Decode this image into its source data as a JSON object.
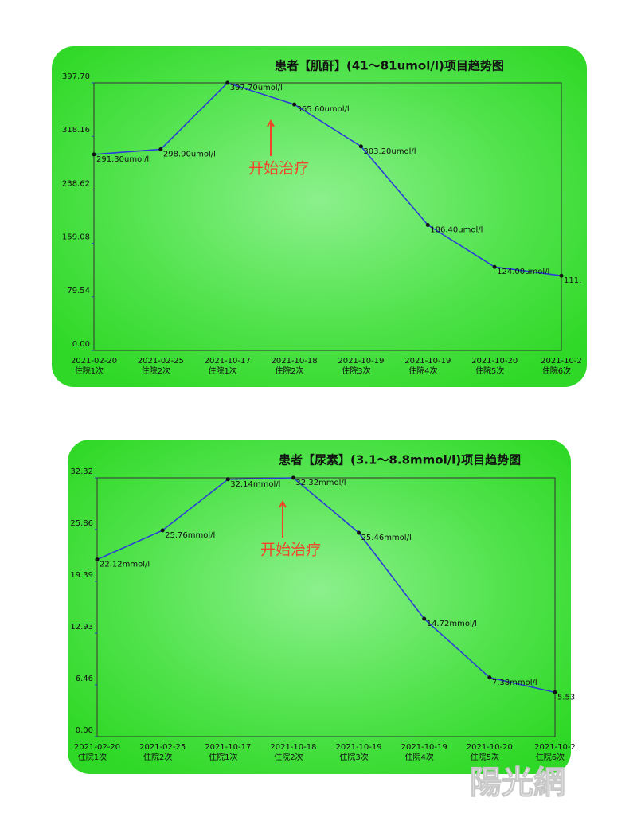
{
  "chart_data": [
    {
      "type": "line",
      "title": "患者【肌酐】(41～81umol/l)项目趋势图",
      "annotation": "开始治疗",
      "categories": [
        "2021-02-20",
        "2021-02-25",
        "2021-10-17",
        "2021-10-18",
        "2021-10-19",
        "2021-10-19",
        "2021-10-20",
        "2021-10-2"
      ],
      "visits": [
        "住院1次",
        "住院2次",
        "住院1次",
        "住院2次",
        "住院3次",
        "住院4次",
        "住院5次",
        "住院6次"
      ],
      "series": [
        {
          "color": "#2b3fd6",
          "values": [
            291.3,
            298.9,
            397.7,
            365.6,
            303.2,
            186.4,
            124.0,
            111
          ],
          "value_labels": [
            "291.30umol/l",
            "298.90umol/l",
            "397.70umol/l",
            "365.60umol/l",
            "303.20umol/l",
            "186.40umol/l",
            "124.00umol/l",
            "111."
          ]
        }
      ],
      "ylim": [
        0,
        397.7
      ],
      "yticks": [
        {
          "value": 0,
          "label": "0.00"
        },
        {
          "value": 79.54,
          "label": "79.54"
        },
        {
          "value": 159.08,
          "label": "159.08"
        },
        {
          "value": 238.62,
          "label": "238.62"
        },
        {
          "value": 318.16,
          "label": "318.16"
        },
        {
          "value": 397.7,
          "label": "397.70"
        }
      ]
    },
    {
      "type": "line",
      "title": "患者【尿素】(3.1～8.8mmol/l)项目趋势图",
      "annotation": "开始治疗",
      "categories": [
        "2021-02-20",
        "2021-02-25",
        "2021-10-17",
        "2021-10-18",
        "2021-10-19",
        "2021-10-19",
        "2021-10-20",
        "2021-10-2"
      ],
      "visits": [
        "住院1次",
        "住院2次",
        "住院1次",
        "住院2次",
        "住院3次",
        "住院4次",
        "住院5次",
        "住院6次"
      ],
      "series": [
        {
          "color": "#2b3fd6",
          "values": [
            22.12,
            25.76,
            32.14,
            32.32,
            25.46,
            14.72,
            7.38,
            5.53
          ],
          "value_labels": [
            "22.12mmol/l",
            "25.76mmol/l",
            "32.14mmol/l",
            "32.32mmol/l",
            "25.46mmol/l",
            "14.72mmol/l",
            "7.38mmol/l",
            "5.53"
          ]
        }
      ],
      "ylim": [
        0,
        32.32
      ],
      "yticks": [
        {
          "value": 0,
          "label": "0.00"
        },
        {
          "value": 6.46,
          "label": "6.46"
        },
        {
          "value": 12.93,
          "label": "12.93"
        },
        {
          "value": 19.39,
          "label": "19.39"
        },
        {
          "value": 25.86,
          "label": "25.86"
        },
        {
          "value": 32.32,
          "label": "32.32"
        }
      ]
    }
  ],
  "watermark": "陽光網"
}
